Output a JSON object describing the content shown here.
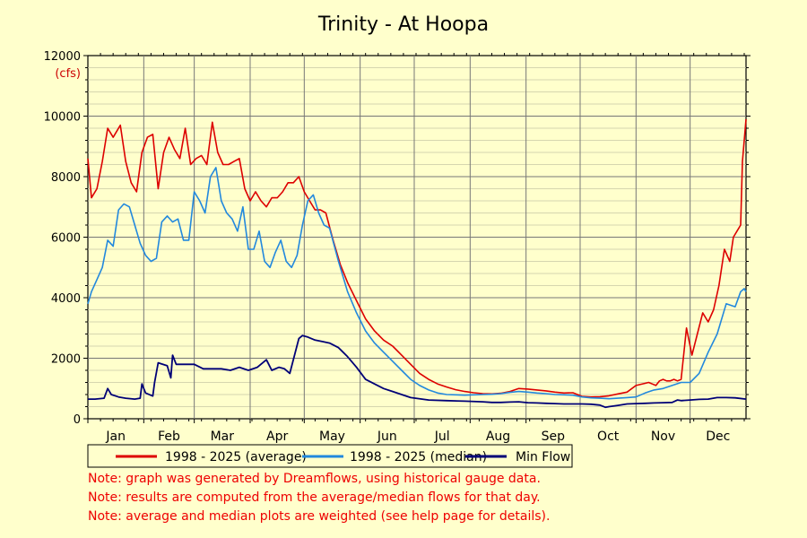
{
  "chart_data": {
    "type": "line",
    "title": "Trinity - At Hoopa",
    "ylabel": "(cfs)",
    "xlabel": "",
    "ylim": [
      0,
      12000
    ],
    "xlim": [
      1,
      366
    ],
    "y_ticks": [
      0,
      2000,
      4000,
      6000,
      8000,
      10000,
      12000
    ],
    "y_tick_labels": [
      "0",
      "2000",
      "4000",
      "6000",
      "8000",
      "10000",
      "12000"
    ],
    "month_labels": [
      "Jan",
      "Feb",
      "Mar",
      "Apr",
      "May",
      "Jun",
      "Jul",
      "Aug",
      "Sep",
      "Oct",
      "Nov",
      "Dec"
    ],
    "month_start_days": [
      1,
      32,
      60,
      91,
      121,
      152,
      182,
      213,
      244,
      274,
      305,
      335
    ],
    "x_unit": "day of year",
    "grid": true,
    "legend_position": "bottom",
    "series": [
      {
        "name": "1998 - 2025 (average)",
        "color": "#dd0000",
        "x": [
          1,
          3,
          6,
          9,
          12,
          15,
          19,
          22,
          25,
          28,
          31,
          34,
          37,
          40,
          43,
          46,
          49,
          52,
          55,
          58,
          61,
          64,
          67,
          70,
          73,
          76,
          79,
          82,
          85,
          88,
          91,
          94,
          97,
          100,
          103,
          106,
          109,
          112,
          115,
          118,
          121,
          124,
          127,
          130,
          133,
          137,
          141,
          145,
          150,
          155,
          160,
          165,
          170,
          175,
          180,
          185,
          190,
          195,
          200,
          205,
          210,
          215,
          220,
          225,
          230,
          235,
          240,
          245,
          250,
          255,
          260,
          265,
          270,
          275,
          280,
          285,
          290,
          295,
          300,
          305,
          310,
          312,
          314,
          316,
          318,
          320,
          322,
          324,
          326,
          328,
          330,
          333,
          336,
          339,
          342,
          345,
          348,
          351,
          354,
          357,
          359,
          361,
          363,
          364,
          366
        ],
        "y": [
          8600,
          7300,
          7600,
          8500,
          9600,
          9300,
          9700,
          8500,
          7800,
          7500,
          8800,
          9300,
          9400,
          7600,
          8800,
          9300,
          8900,
          8600,
          9600,
          8400,
          8600,
          8700,
          8400,
          9800,
          8800,
          8400,
          8400,
          8500,
          8600,
          7600,
          7200,
          7500,
          7200,
          7000,
          7300,
          7300,
          7500,
          7800,
          7800,
          8000,
          7500,
          7200,
          6900,
          6900,
          6800,
          5900,
          5100,
          4500,
          3900,
          3300,
          2900,
          2600,
          2400,
          2100,
          1800,
          1500,
          1300,
          1150,
          1050,
          960,
          900,
          860,
          830,
          820,
          840,
          900,
          1000,
          980,
          950,
          920,
          880,
          850,
          860,
          740,
          720,
          730,
          760,
          820,
          880,
          1100,
          1170,
          1200,
          1150,
          1100,
          1250,
          1300,
          1250,
          1250,
          1300,
          1250,
          1300,
          3000,
          2100,
          2800,
          3500,
          3200,
          3600,
          4400,
          5600,
          5200,
          6000,
          6200,
          6400,
          8500,
          9900
        ]
      },
      {
        "name": "1998 - 2025 (median)",
        "color": "#2288dd",
        "x": [
          1,
          3,
          6,
          9,
          12,
          15,
          18,
          21,
          24,
          27,
          30,
          33,
          36,
          39,
          42,
          45,
          48,
          51,
          54,
          57,
          60,
          63,
          66,
          69,
          72,
          75,
          78,
          81,
          84,
          87,
          90,
          93,
          96,
          99,
          102,
          105,
          108,
          111,
          114,
          117,
          120,
          123,
          126,
          129,
          132,
          135,
          140,
          145,
          150,
          155,
          160,
          165,
          170,
          175,
          180,
          185,
          190,
          195,
          200,
          205,
          210,
          215,
          220,
          225,
          230,
          235,
          240,
          245,
          250,
          255,
          260,
          265,
          270,
          275,
          280,
          285,
          290,
          295,
          300,
          305,
          310,
          315,
          320,
          325,
          330,
          335,
          340,
          345,
          350,
          355,
          360,
          363,
          365,
          366
        ],
        "y": [
          3800,
          4200,
          4600,
          5000,
          5900,
          5700,
          6900,
          7100,
          7000,
          6400,
          5800,
          5400,
          5200,
          5300,
          6500,
          6700,
          6500,
          6600,
          5900,
          5900,
          7500,
          7200,
          6800,
          8000,
          8300,
          7200,
          6800,
          6600,
          6200,
          7000,
          5600,
          5600,
          6200,
          5200,
          5000,
          5500,
          5900,
          5200,
          5000,
          5400,
          6400,
          7200,
          7400,
          6800,
          6400,
          6300,
          5200,
          4200,
          3500,
          2900,
          2500,
          2200,
          1900,
          1600,
          1300,
          1100,
          950,
          850,
          800,
          790,
          780,
          790,
          800,
          810,
          830,
          870,
          900,
          880,
          850,
          830,
          800,
          790,
          780,
          720,
          690,
          680,
          660,
          680,
          700,
          720,
          850,
          950,
          1000,
          1100,
          1200,
          1200,
          1500,
          2200,
          2800,
          3800,
          3700,
          4200,
          4300,
          4200
        ]
      },
      {
        "name": "Min Flow",
        "color": "#000077",
        "x": [
          1,
          5,
          10,
          12,
          14,
          18,
          22,
          27,
          30,
          31,
          33,
          37,
          38,
          40,
          45,
          47,
          48,
          50,
          55,
          60,
          65,
          70,
          75,
          80,
          85,
          90,
          95,
          100,
          103,
          107,
          110,
          113,
          118,
          120,
          123,
          127,
          131,
          135,
          140,
          145,
          150,
          155,
          160,
          165,
          170,
          175,
          180,
          190,
          200,
          210,
          220,
          225,
          230,
          235,
          240,
          245,
          250,
          255,
          260,
          265,
          270,
          275,
          280,
          285,
          288,
          290,
          295,
          300,
          305,
          310,
          315,
          320,
          325,
          328,
          330,
          335,
          340,
          345,
          350,
          355,
          360,
          366
        ],
        "y": [
          650,
          650,
          680,
          1000,
          800,
          720,
          680,
          650,
          680,
          1150,
          850,
          750,
          1200,
          1850,
          1750,
          1350,
          2100,
          1800,
          1800,
          1800,
          1650,
          1650,
          1650,
          1600,
          1700,
          1600,
          1700,
          1950,
          1600,
          1700,
          1650,
          1500,
          2650,
          2750,
          2700,
          2600,
          2550,
          2500,
          2350,
          2050,
          1700,
          1300,
          1150,
          1000,
          900,
          800,
          700,
          620,
          600,
          580,
          560,
          540,
          540,
          550,
          560,
          530,
          520,
          510,
          500,
          490,
          490,
          490,
          480,
          450,
          380,
          400,
          440,
          490,
          500,
          510,
          520,
          530,
          540,
          620,
          600,
          620,
          640,
          650,
          700,
          700,
          690,
          650
        ]
      }
    ]
  },
  "notes": [
    "Note: graph was generated by Dreamflows, using historical gauge data.",
    "Note: results are computed from the average/median flows for that day.",
    "Note: average and median plots are weighted (see help page for details)."
  ]
}
